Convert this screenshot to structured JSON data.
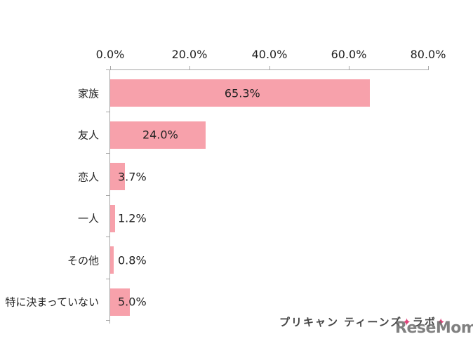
{
  "chart_data": {
    "type": "bar",
    "orientation": "horizontal",
    "title": "",
    "xlabel": "",
    "ylabel": "",
    "xlim": [
      0,
      80
    ],
    "x_ticks": [
      "0.0%",
      "20.0%",
      "40.0%",
      "60.0%",
      "80.0%"
    ],
    "x_tick_values": [
      0,
      20,
      40,
      60,
      80
    ],
    "x_axis_position": "top",
    "grid": false,
    "legend": null,
    "categories": [
      "家族",
      "友人",
      "恋人",
      "一人",
      "その他",
      "特に決まっていない"
    ],
    "values": [
      65.3,
      24.0,
      3.7,
      1.2,
      0.8,
      5.0
    ],
    "value_labels": [
      "65.3%",
      "24.0%",
      "3.7%",
      "1.2%",
      "0.8%",
      "5.0%"
    ],
    "bar_color": "#f7a1ab"
  },
  "branding": {
    "logo_text": "プリキャン ティーンズ",
    "logo_text2": "ラボ",
    "logo_star": "✦",
    "watermark": "ReseMom."
  }
}
